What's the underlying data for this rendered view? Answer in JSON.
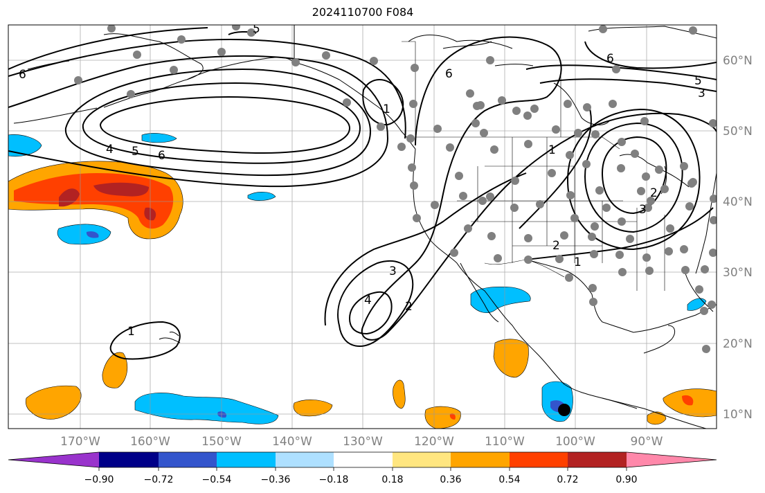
{
  "title": "2024110700 F084",
  "map": {
    "lon_range": [
      -180,
      -80
    ],
    "lat_range": [
      8,
      65
    ],
    "lon_labels": [
      "170°W",
      "160°W",
      "150°W",
      "140°W",
      "130°W",
      "120°W",
      "110°W",
      "100°W",
      "90°W"
    ],
    "lat_labels": [
      "60°N",
      "50°N",
      "40°N",
      "30°N",
      "20°N",
      "10°N"
    ],
    "gridlines": true,
    "contour_labels": [
      "6",
      "5",
      "4",
      "5",
      "6",
      "1",
      "6",
      "6",
      "5",
      "3",
      "1",
      "2",
      "1",
      "3",
      "2",
      "4",
      "3",
      "2",
      "1"
    ],
    "station_dot_color": "#808080",
    "marker_color": "#000000"
  },
  "colorbar": {
    "ticks": [
      "−0.90",
      "−0.72",
      "−0.54",
      "−0.36",
      "−0.18",
      "0.18",
      "0.36",
      "0.54",
      "0.72",
      "0.90"
    ],
    "colors": [
      "#9933cc",
      "#000088",
      "#3355cc",
      "#00bfff",
      "#aee0ff",
      "#ffffff",
      "#ffe680",
      "#ffa500",
      "#ff4000",
      "#b22222",
      "#ff88aa"
    ]
  }
}
